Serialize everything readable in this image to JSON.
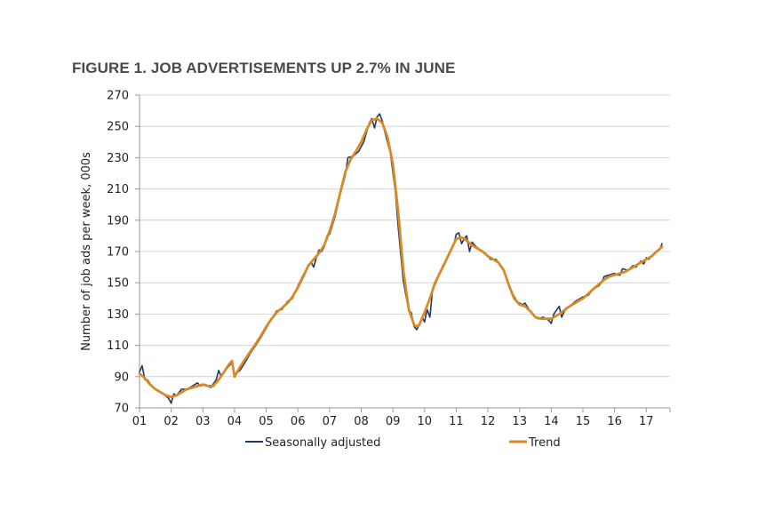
{
  "chart_data": {
    "type": "line",
    "title": "FIGURE 1. JOB ADVERTISEMENTS UP 2.7% IN JUNE",
    "ylabel": "Number of job ads per week, 000s",
    "xlabel": "",
    "ylim": [
      70,
      270
    ],
    "yticks": [
      "70",
      "90",
      "110",
      "130",
      "150",
      "170",
      "190",
      "210",
      "230",
      "250",
      "270"
    ],
    "xlim": [
      2001.0,
      2017.75
    ],
    "xticks": [
      {
        "x": 2001,
        "label": "01"
      },
      {
        "x": 2002,
        "label": "02"
      },
      {
        "x": 2003,
        "label": "03"
      },
      {
        "x": 2004,
        "label": "04"
      },
      {
        "x": 2005,
        "label": "05"
      },
      {
        "x": 2006,
        "label": "06"
      },
      {
        "x": 2007,
        "label": "07"
      },
      {
        "x": 2008,
        "label": "08"
      },
      {
        "x": 2009,
        "label": "09"
      },
      {
        "x": 2010,
        "label": "10"
      },
      {
        "x": 2011,
        "label": "11"
      },
      {
        "x": 2012,
        "label": "12"
      },
      {
        "x": 2013,
        "label": "13"
      },
      {
        "x": 2014,
        "label": "14"
      },
      {
        "x": 2015,
        "label": "15"
      },
      {
        "x": 2016,
        "label": "16"
      },
      {
        "x": 2017,
        "label": "17"
      }
    ],
    "grid": "horizontal",
    "legend": "bottom",
    "series": [
      {
        "name": "Seasonally adjusted",
        "color": "#1f3864",
        "points": [
          [
            2001.0,
            93
          ],
          [
            2001.08,
            97
          ],
          [
            2001.17,
            88
          ],
          [
            2001.25,
            88
          ],
          [
            2001.42,
            83
          ],
          [
            2001.58,
            81
          ],
          [
            2001.75,
            79
          ],
          [
            2001.92,
            76
          ],
          [
            2002.0,
            73
          ],
          [
            2002.08,
            79
          ],
          [
            2002.17,
            78
          ],
          [
            2002.33,
            82
          ],
          [
            2002.5,
            82
          ],
          [
            2002.67,
            84
          ],
          [
            2002.83,
            86
          ],
          [
            2002.92,
            84
          ],
          [
            2003.08,
            85
          ],
          [
            2003.25,
            83
          ],
          [
            2003.42,
            88
          ],
          [
            2003.5,
            94
          ],
          [
            2003.58,
            90
          ],
          [
            2003.75,
            95
          ],
          [
            2003.92,
            99
          ],
          [
            2004.0,
            91
          ],
          [
            2004.17,
            94
          ],
          [
            2004.33,
            99
          ],
          [
            2004.5,
            105
          ],
          [
            2004.67,
            110
          ],
          [
            2004.83,
            115
          ],
          [
            2005.0,
            121
          ],
          [
            2005.17,
            127
          ],
          [
            2005.33,
            132
          ],
          [
            2005.5,
            133
          ],
          [
            2005.67,
            138
          ],
          [
            2005.83,
            140
          ],
          [
            2006.0,
            148
          ],
          [
            2006.17,
            155
          ],
          [
            2006.33,
            161
          ],
          [
            2006.42,
            163
          ],
          [
            2006.5,
            160
          ],
          [
            2006.58,
            166
          ],
          [
            2006.67,
            171
          ],
          [
            2006.75,
            170
          ],
          [
            2006.83,
            173
          ],
          [
            2006.92,
            180
          ],
          [
            2007.0,
            181
          ],
          [
            2007.17,
            192
          ],
          [
            2007.33,
            206
          ],
          [
            2007.5,
            219
          ],
          [
            2007.58,
            230
          ],
          [
            2007.75,
            231
          ],
          [
            2007.92,
            234
          ],
          [
            2008.08,
            240
          ],
          [
            2008.25,
            252
          ],
          [
            2008.33,
            255
          ],
          [
            2008.42,
            249
          ],
          [
            2008.5,
            256
          ],
          [
            2008.58,
            258
          ],
          [
            2008.67,
            253
          ],
          [
            2008.75,
            246
          ],
          [
            2008.92,
            233
          ],
          [
            2009.08,
            208
          ],
          [
            2009.17,
            185
          ],
          [
            2009.33,
            151
          ],
          [
            2009.5,
            132
          ],
          [
            2009.58,
            131
          ],
          [
            2009.67,
            122
          ],
          [
            2009.75,
            120
          ],
          [
            2009.83,
            123
          ],
          [
            2009.92,
            128
          ],
          [
            2010.0,
            125
          ],
          [
            2010.08,
            133
          ],
          [
            2010.17,
            128
          ],
          [
            2010.25,
            145
          ],
          [
            2010.42,
            153
          ],
          [
            2010.58,
            161
          ],
          [
            2010.75,
            167
          ],
          [
            2010.92,
            174
          ],
          [
            2011.0,
            181
          ],
          [
            2011.08,
            182
          ],
          [
            2011.17,
            175
          ],
          [
            2011.25,
            178
          ],
          [
            2011.33,
            180
          ],
          [
            2011.42,
            170
          ],
          [
            2011.5,
            176
          ],
          [
            2011.58,
            174
          ],
          [
            2011.75,
            171
          ],
          [
            2011.92,
            169
          ],
          [
            2012.0,
            167
          ],
          [
            2012.08,
            165
          ],
          [
            2012.25,
            165
          ],
          [
            2012.42,
            161
          ],
          [
            2012.58,
            154
          ],
          [
            2012.75,
            144
          ],
          [
            2012.92,
            138
          ],
          [
            2013.08,
            136
          ],
          [
            2013.17,
            137
          ],
          [
            2013.33,
            132
          ],
          [
            2013.5,
            128
          ],
          [
            2013.58,
            127
          ],
          [
            2013.75,
            128
          ],
          [
            2013.92,
            126
          ],
          [
            2014.0,
            124
          ],
          [
            2014.08,
            130
          ],
          [
            2014.25,
            135
          ],
          [
            2014.33,
            128
          ],
          [
            2014.42,
            132
          ],
          [
            2014.58,
            135
          ],
          [
            2014.75,
            138
          ],
          [
            2014.92,
            140
          ],
          [
            2015.0,
            141
          ],
          [
            2015.17,
            142
          ],
          [
            2015.33,
            146
          ],
          [
            2015.5,
            148
          ],
          [
            2015.58,
            150
          ],
          [
            2015.67,
            154
          ],
          [
            2015.83,
            155
          ],
          [
            2016.0,
            156
          ],
          [
            2016.08,
            155
          ],
          [
            2016.17,
            155
          ],
          [
            2016.25,
            159
          ],
          [
            2016.42,
            158
          ],
          [
            2016.58,
            161
          ],
          [
            2016.67,
            160
          ],
          [
            2016.83,
            164
          ],
          [
            2016.92,
            162
          ],
          [
            2017.0,
            166
          ],
          [
            2017.08,
            165
          ],
          [
            2017.25,
            169
          ],
          [
            2017.42,
            171
          ],
          [
            2017.5,
            175
          ]
        ]
      },
      {
        "name": "Trend",
        "color": "#d98a28",
        "points": [
          [
            2001.0,
            92
          ],
          [
            2001.17,
            89
          ],
          [
            2001.33,
            85
          ],
          [
            2001.5,
            82
          ],
          [
            2001.67,
            80
          ],
          [
            2001.83,
            78
          ],
          [
            2002.0,
            77
          ],
          [
            2002.17,
            78
          ],
          [
            2002.33,
            80
          ],
          [
            2002.5,
            82
          ],
          [
            2002.67,
            83
          ],
          [
            2002.83,
            84
          ],
          [
            2003.0,
            85
          ],
          [
            2003.17,
            84
          ],
          [
            2003.33,
            84
          ],
          [
            2003.5,
            88
          ],
          [
            2003.67,
            93
          ],
          [
            2003.83,
            98
          ],
          [
            2003.92,
            100
          ],
          [
            2004.0,
            90
          ],
          [
            2004.17,
            96
          ],
          [
            2004.33,
            101
          ],
          [
            2004.5,
            106
          ],
          [
            2004.67,
            111
          ],
          [
            2004.83,
            116
          ],
          [
            2005.0,
            122
          ],
          [
            2005.17,
            127
          ],
          [
            2005.33,
            131
          ],
          [
            2005.5,
            134
          ],
          [
            2005.67,
            137
          ],
          [
            2005.83,
            141
          ],
          [
            2006.0,
            147
          ],
          [
            2006.17,
            154
          ],
          [
            2006.33,
            161
          ],
          [
            2006.5,
            165
          ],
          [
            2006.67,
            169
          ],
          [
            2006.83,
            174
          ],
          [
            2007.0,
            183
          ],
          [
            2007.17,
            194
          ],
          [
            2007.33,
            207
          ],
          [
            2007.5,
            221
          ],
          [
            2007.67,
            229
          ],
          [
            2007.83,
            234
          ],
          [
            2008.0,
            240
          ],
          [
            2008.17,
            248
          ],
          [
            2008.33,
            254
          ],
          [
            2008.5,
            255
          ],
          [
            2008.67,
            252
          ],
          [
            2008.83,
            243
          ],
          [
            2009.0,
            226
          ],
          [
            2009.17,
            195
          ],
          [
            2009.33,
            158
          ],
          [
            2009.5,
            133
          ],
          [
            2009.67,
            123
          ],
          [
            2009.75,
            122
          ],
          [
            2009.83,
            123
          ],
          [
            2010.0,
            131
          ],
          [
            2010.17,
            140
          ],
          [
            2010.33,
            150
          ],
          [
            2010.5,
            157
          ],
          [
            2010.67,
            164
          ],
          [
            2010.83,
            171
          ],
          [
            2011.0,
            178
          ],
          [
            2011.17,
            179
          ],
          [
            2011.33,
            177
          ],
          [
            2011.5,
            174
          ],
          [
            2011.67,
            172
          ],
          [
            2011.83,
            170
          ],
          [
            2012.0,
            167
          ],
          [
            2012.17,
            165
          ],
          [
            2012.33,
            163
          ],
          [
            2012.5,
            158
          ],
          [
            2012.67,
            148
          ],
          [
            2012.83,
            140
          ],
          [
            2013.0,
            136
          ],
          [
            2013.17,
            135
          ],
          [
            2013.33,
            132
          ],
          [
            2013.5,
            128
          ],
          [
            2013.67,
            127
          ],
          [
            2013.83,
            127
          ],
          [
            2014.0,
            127
          ],
          [
            2014.17,
            129
          ],
          [
            2014.33,
            131
          ],
          [
            2014.5,
            134
          ],
          [
            2014.67,
            136
          ],
          [
            2014.83,
            138
          ],
          [
            2015.0,
            140
          ],
          [
            2015.17,
            143
          ],
          [
            2015.33,
            146
          ],
          [
            2015.5,
            149
          ],
          [
            2015.67,
            152
          ],
          [
            2015.83,
            154
          ],
          [
            2016.0,
            155
          ],
          [
            2016.17,
            156
          ],
          [
            2016.33,
            157
          ],
          [
            2016.5,
            159
          ],
          [
            2016.67,
            161
          ],
          [
            2016.83,
            163
          ],
          [
            2017.0,
            165
          ],
          [
            2017.17,
            167
          ],
          [
            2017.33,
            170
          ],
          [
            2017.5,
            173
          ]
        ]
      }
    ]
  }
}
